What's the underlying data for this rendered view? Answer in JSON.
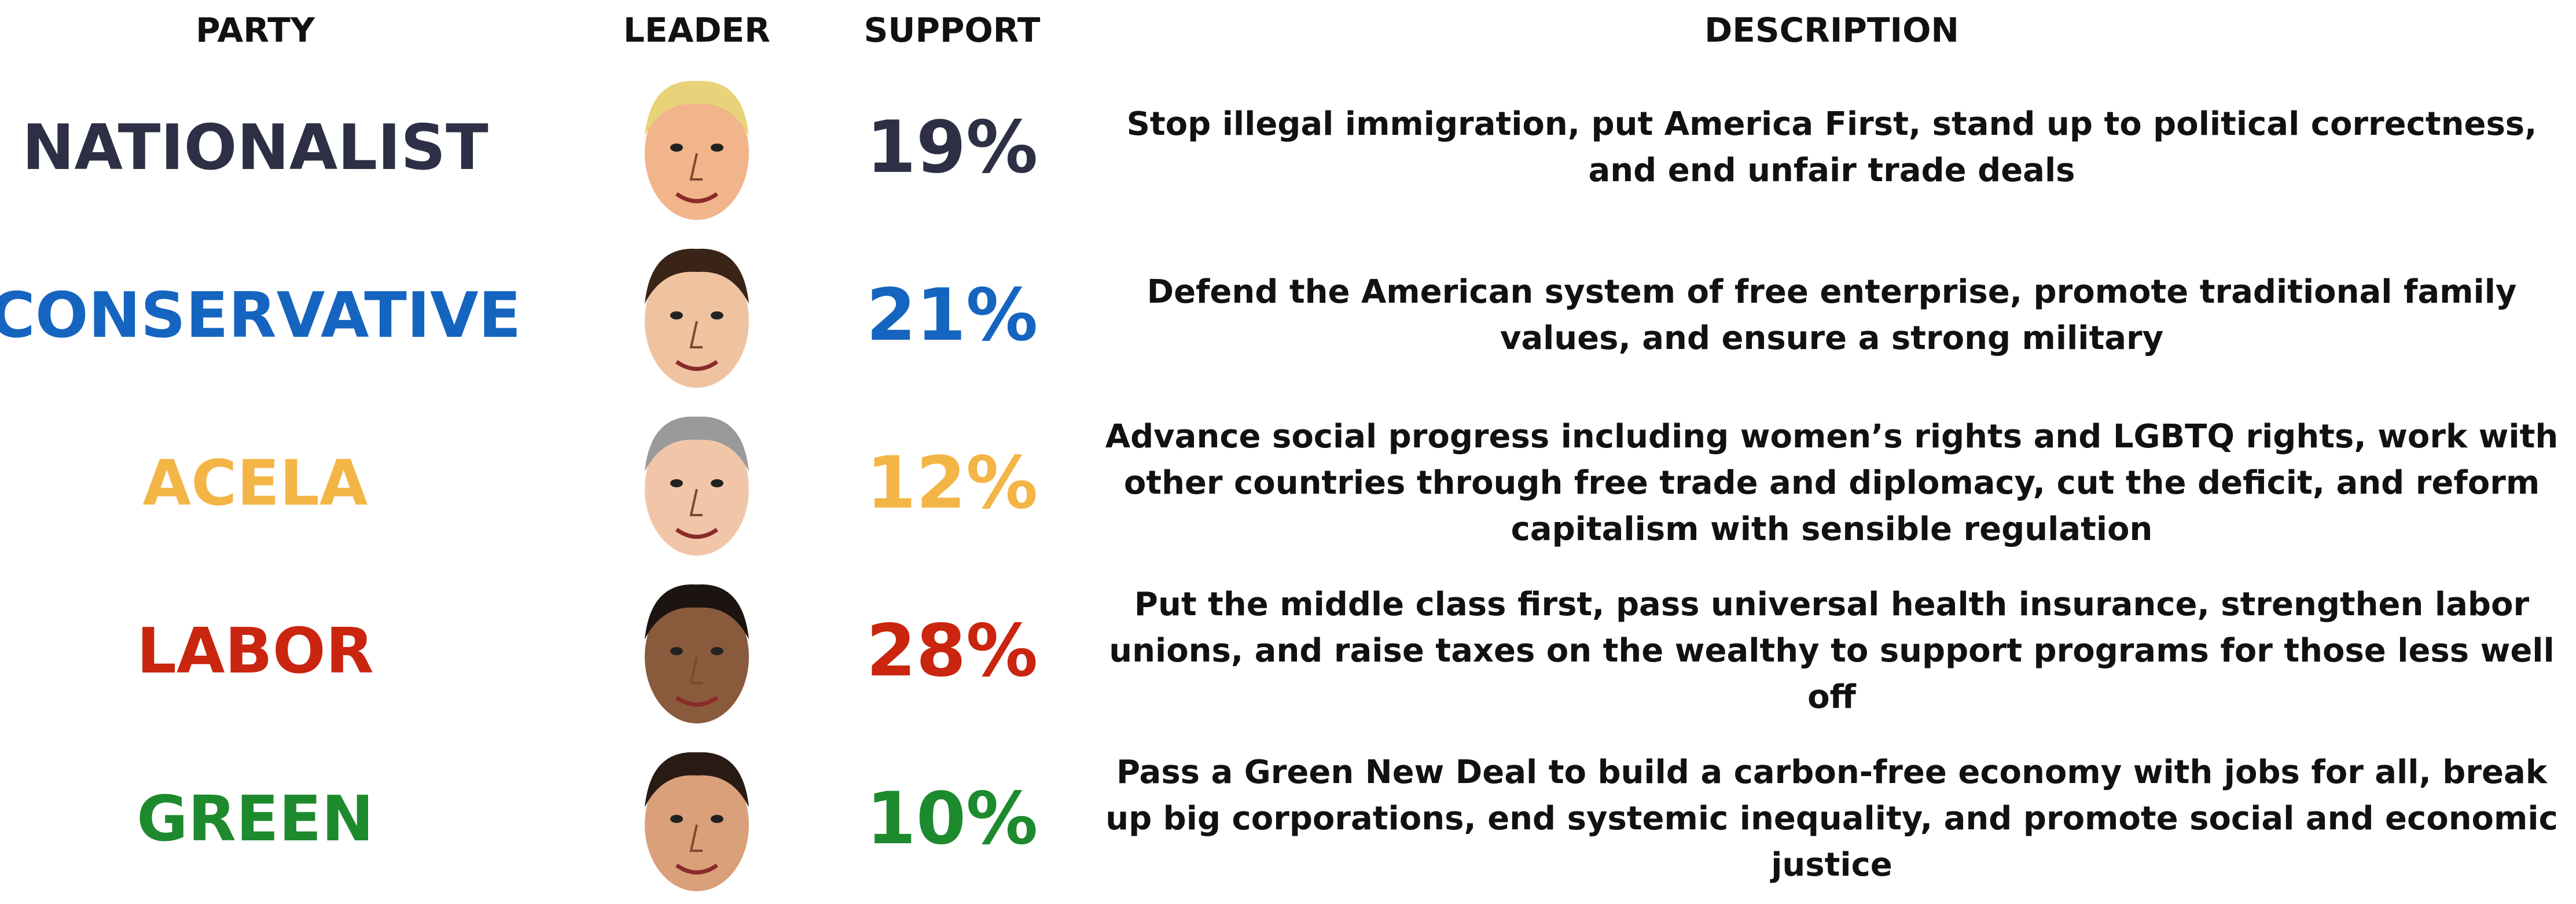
{
  "header": {
    "party": "PARTY",
    "leader": "LEADER",
    "support": "SUPPORT",
    "description": "DESCRIPTION"
  },
  "rows": [
    {
      "party": "NATIONALIST",
      "support": "19%",
      "color": "#2d2f45",
      "description": "Stop illegal immigration, put America First, stand up to political correctness, and end unfair trade deals"
    },
    {
      "party": "CONSERVATIVE",
      "support": "21%",
      "color": "#1565c0",
      "description": "Defend the American system of free enterprise, promote traditional family values, and ensure a strong military"
    },
    {
      "party": "ACELA",
      "support": "12%",
      "color": "#f4b547",
      "description": "Advance social progress including women’s rights and LGBTQ rights, work with other countries through free trade and diplomacy, cut the deficit, and reform capitalism with sensible regulation"
    },
    {
      "party": "LABOR",
      "support": "28%",
      "color": "#c9250f",
      "description": "Put the middle class first, pass universal health insurance, strengthen labor unions, and raise taxes on the wealthy to support programs for those less well off"
    },
    {
      "party": "GREEN",
      "support": "10%",
      "color": "#1e8a2e",
      "description": "Pass a Green New Deal to build a carbon-free economy with jobs for all, break up big corporations, end systemic inequality, and promote social and economic justice"
    }
  ]
}
